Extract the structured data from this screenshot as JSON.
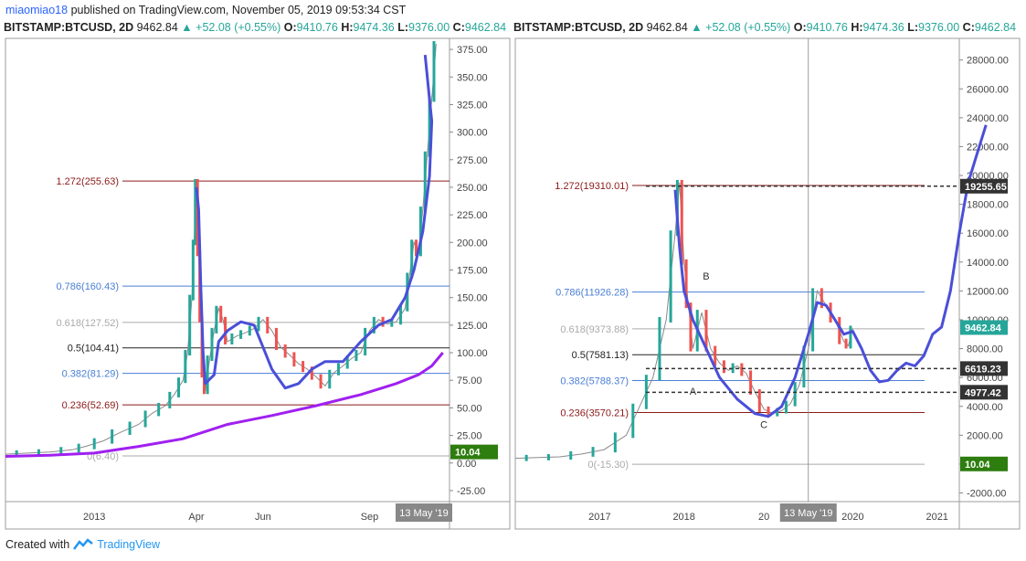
{
  "header": {
    "user": "miaomiao18",
    "published": "published on TradingView.com, November 05, 2019 09:53:34 CST"
  },
  "footer": {
    "created_with": "Created with",
    "brand": "TradingView"
  },
  "colors": {
    "up": "#26a69a",
    "down": "#ef5350",
    "curve": "#4a4fd8",
    "ema": "#a020f0",
    "label_green": "#2e7d0f",
    "price_tag": "#2e7d0f"
  },
  "chart_data": [
    {
      "type": "candlestick",
      "symbol": "BITSTAMP:BTCUSD, 2D",
      "quote": {
        "last": "9462.84",
        "change": "+52.08 (+0.55%)",
        "o_label": "O:",
        "o": "9410.76",
        "h_label": "H:",
        "h": "9474.36",
        "l_label": "L:",
        "l": "9376.00",
        "c_label": "C:",
        "c": "9462.84"
      },
      "ylim": [
        -35,
        385
      ],
      "y_ticks": [
        "375.00",
        "350.00",
        "325.00",
        "300.00",
        "275.00",
        "250.00",
        "225.00",
        "200.00",
        "175.00",
        "150.00",
        "125.00",
        "100.00",
        "75.00",
        "50.00",
        "25.00",
        "0.00",
        "-25.00"
      ],
      "y_tick_values": [
        375,
        350,
        325,
        300,
        275,
        250,
        225,
        200,
        175,
        150,
        125,
        100,
        75,
        50,
        25,
        0,
        -25
      ],
      "x_ticks": [
        "2013",
        "Apr",
        "Jun",
        "Sep"
      ],
      "x_tick_positions": [
        0.2,
        0.43,
        0.58,
        0.82
      ],
      "crosshair_label": "13 May '19",
      "fib_levels": [
        {
          "label": "1.272(255.63)",
          "value": 255.63,
          "color": "#8b1a1a"
        },
        {
          "label": "0.786(160.43)",
          "value": 160.43,
          "color": "#4a7fd4"
        },
        {
          "label": "0.618(127.52)",
          "value": 127.52,
          "color": "#aaaaaa"
        },
        {
          "label": "0.5(104.41)",
          "value": 104.41,
          "color": "#222222"
        },
        {
          "label": "0.382(81.29)",
          "value": 81.29,
          "color": "#4a7fd4"
        },
        {
          "label": "0.236(52.69)",
          "value": 52.69,
          "color": "#8b1a1a"
        },
        {
          "label": "0(6.40)",
          "value": 6.4,
          "color": "#aaaaaa"
        }
      ],
      "price_tag": "10.04",
      "price_tag_value": 10.04,
      "series": [
        {
          "name": "",
          "points": [
            [
              0,
              8
            ],
            [
              0.05,
              9
            ],
            [
              0.1,
              10
            ],
            [
              0.15,
              12
            ],
            [
              0.18,
              15
            ],
            [
              0.22,
              20
            ],
            [
              0.26,
              28
            ],
            [
              0.3,
              35
            ],
            [
              0.33,
              45
            ],
            [
              0.36,
              52
            ],
            [
              0.38,
              62
            ],
            [
              0.4,
              75
            ],
            [
              0.41,
              100
            ],
            [
              0.42,
              150
            ],
            [
              0.425,
              200
            ],
            [
              0.43,
              255
            ],
            [
              0.435,
              190
            ],
            [
              0.44,
              130
            ],
            [
              0.445,
              80
            ],
            [
              0.45,
              65
            ],
            [
              0.46,
              95
            ],
            [
              0.47,
              120
            ],
            [
              0.48,
              140
            ],
            [
              0.49,
              130
            ],
            [
              0.5,
              110
            ],
            [
              0.52,
              115
            ],
            [
              0.54,
              118
            ],
            [
              0.56,
              122
            ],
            [
              0.58,
              130
            ],
            [
              0.6,
              120
            ],
            [
              0.62,
              105
            ],
            [
              0.64,
              98
            ],
            [
              0.66,
              90
            ],
            [
              0.68,
              85
            ],
            [
              0.7,
              78
            ],
            [
              0.72,
              70
            ],
            [
              0.74,
              82
            ],
            [
              0.76,
              88
            ],
            [
              0.78,
              95
            ],
            [
              0.8,
              100
            ],
            [
              0.82,
              120
            ],
            [
              0.84,
              130
            ],
            [
              0.86,
              126
            ],
            [
              0.88,
              128
            ],
            [
              0.9,
              140
            ],
            [
              0.91,
              170
            ],
            [
              0.92,
              200
            ],
            [
              0.93,
              190
            ],
            [
              0.94,
              230
            ],
            [
              0.95,
              280
            ],
            [
              0.96,
              330
            ],
            [
              0.97,
              380
            ]
          ]
        }
      ],
      "curve": [
        [
          0.43,
          250
        ],
        [
          0.435,
          230
        ],
        [
          0.44,
          160
        ],
        [
          0.445,
          100
        ],
        [
          0.45,
          72
        ],
        [
          0.47,
          80
        ],
        [
          0.48,
          110
        ],
        [
          0.5,
          120
        ],
        [
          0.53,
          128
        ],
        [
          0.56,
          125
        ],
        [
          0.58,
          105
        ],
        [
          0.6,
          85
        ],
        [
          0.63,
          68
        ],
        [
          0.66,
          72
        ],
        [
          0.69,
          85
        ],
        [
          0.72,
          92
        ],
        [
          0.76,
          92
        ],
        [
          0.8,
          110
        ],
        [
          0.84,
          125
        ],
        [
          0.87,
          130
        ],
        [
          0.9,
          150
        ],
        [
          0.92,
          175
        ],
        [
          0.94,
          210
        ],
        [
          0.955,
          260
        ],
        [
          0.96,
          310
        ],
        [
          0.955,
          330
        ],
        [
          0.945,
          370
        ]
      ],
      "ema": [
        [
          0,
          6
        ],
        [
          0.1,
          7
        ],
        [
          0.2,
          9
        ],
        [
          0.3,
          15
        ],
        [
          0.4,
          22
        ],
        [
          0.5,
          35
        ],
        [
          0.6,
          43
        ],
        [
          0.7,
          52
        ],
        [
          0.8,
          62
        ],
        [
          0.88,
          72
        ],
        [
          0.93,
          80
        ],
        [
          0.96,
          88
        ],
        [
          0.985,
          100
        ]
      ]
    },
    {
      "type": "candlestick",
      "symbol": "BITSTAMP:BTCUSD, 2D",
      "quote": {
        "last": "9462.84",
        "change": "+52.08 (+0.55%)",
        "o_label": "O:",
        "o": "9410.76",
        "h_label": "H:",
        "h": "9474.36",
        "l_label": "L:",
        "l": "9376.00",
        "c_label": "C:",
        "c": "9462.84"
      },
      "ylim": [
        -2600,
        29500
      ],
      "y_ticks": [
        "28000.00",
        "26000.00",
        "24000.00",
        "22000.00",
        "20000.00",
        "18000.00",
        "16000.00",
        "14000.00",
        "12000.00",
        "10000.00",
        "8000.00",
        "6000.00",
        "4000.00",
        "2000.00",
        "0.00",
        "-2000.00"
      ],
      "y_tick_values": [
        28000,
        26000,
        24000,
        22000,
        20000,
        18000,
        16000,
        14000,
        12000,
        10000,
        8000,
        6000,
        4000,
        2000,
        0,
        -2000
      ],
      "x_ticks": [
        "2017",
        "2018",
        "20",
        "2020",
        "2021"
      ],
      "x_tick_positions": [
        0.19,
        0.38,
        0.56,
        0.76,
        0.95
      ],
      "crosshair_label": "13 May '19",
      "crosshair_pos": 0.66,
      "fib_levels": [
        {
          "label": "1.272(19310.01)",
          "value": 19310.01,
          "color": "#8b1a1a"
        },
        {
          "label": "0.786(11926.28)",
          "value": 11926.28,
          "color": "#4a7fd4"
        },
        {
          "label": "0.618(9373.88)",
          "value": 9373.88,
          "color": "#aaaaaa"
        },
        {
          "label": "0.5(7581.13)",
          "value": 7581.13,
          "color": "#222222"
        },
        {
          "label": "0.382(5788.37)",
          "value": 5788.37,
          "color": "#4a7fd4"
        },
        {
          "label": "0.236(3570.21)",
          "value": 3570.21,
          "color": "#8b1a1a"
        },
        {
          "label": "0(-15.30)",
          "value": -15.3,
          "color": "#aaaaaa"
        }
      ],
      "price_tags": [
        {
          "label": "19255.65",
          "value": 19255.65,
          "bg": "#333333"
        },
        {
          "label": "9462.84",
          "value": 9462.84,
          "bg": "#26a69a"
        },
        {
          "label": "6619.23",
          "value": 6619.23,
          "bg": "#333333"
        },
        {
          "label": "4977.42",
          "value": 4977.42,
          "bg": "#333333"
        },
        {
          "label": "10.04",
          "value": 10.04,
          "bg": "#2e7d0f"
        }
      ],
      "dashed_levels": [
        19255.65,
        6619.23,
        4977.42
      ],
      "wave_labels": [
        {
          "text": "B",
          "x": 0.43,
          "y": 12800
        },
        {
          "text": "A",
          "x": 0.4,
          "y": 4800
        },
        {
          "text": "C",
          "x": 0.56,
          "y": 2500
        }
      ],
      "series": [
        {
          "name": "",
          "points": [
            [
              0,
              400
            ],
            [
              0.05,
              450
            ],
            [
              0.1,
              500
            ],
            [
              0.15,
              700
            ],
            [
              0.2,
              1000
            ],
            [
              0.25,
              2000
            ],
            [
              0.28,
              4000
            ],
            [
              0.31,
              6000
            ],
            [
              0.34,
              10000
            ],
            [
              0.36,
              16000
            ],
            [
              0.37,
              19500
            ],
            [
              0.38,
              14000
            ],
            [
              0.39,
              11000
            ],
            [
              0.4,
              8000
            ],
            [
              0.42,
              10500
            ],
            [
              0.44,
              8000
            ],
            [
              0.46,
              7000
            ],
            [
              0.48,
              6500
            ],
            [
              0.5,
              6800
            ],
            [
              0.52,
              6300
            ],
            [
              0.54,
              5000
            ],
            [
              0.56,
              3800
            ],
            [
              0.58,
              3500
            ],
            [
              0.6,
              3700
            ],
            [
              0.62,
              4200
            ],
            [
              0.64,
              5500
            ],
            [
              0.66,
              8000
            ],
            [
              0.68,
              12000
            ],
            [
              0.7,
              11000
            ],
            [
              0.72,
              10000
            ],
            [
              0.74,
              8500
            ],
            [
              0.75,
              8200
            ],
            [
              0.76,
              9400
            ]
          ]
        }
      ],
      "curve": [
        [
          0.36,
          19000
        ],
        [
          0.37,
          15000
        ],
        [
          0.38,
          12000
        ],
        [
          0.4,
          10000
        ],
        [
          0.43,
          8000
        ],
        [
          0.46,
          6000
        ],
        [
          0.5,
          4500
        ],
        [
          0.54,
          3500
        ],
        [
          0.57,
          3300
        ],
        [
          0.6,
          4000
        ],
        [
          0.63,
          6000
        ],
        [
          0.66,
          9000
        ],
        [
          0.68,
          11200
        ],
        [
          0.7,
          11000
        ],
        [
          0.72,
          10000
        ],
        [
          0.74,
          9000
        ],
        [
          0.76,
          9200
        ],
        [
          0.78,
          8000
        ],
        [
          0.8,
          6500
        ],
        [
          0.82,
          5700
        ],
        [
          0.84,
          5800
        ],
        [
          0.86,
          6500
        ],
        [
          0.88,
          7000
        ],
        [
          0.9,
          6800
        ],
        [
          0.92,
          7500
        ],
        [
          0.94,
          9000
        ],
        [
          0.96,
          9500
        ],
        [
          0.98,
          12000
        ],
        [
          1.0,
          16000
        ],
        [
          1.02,
          19500
        ],
        [
          1.04,
          21500
        ],
        [
          1.06,
          23500
        ]
      ]
    }
  ]
}
